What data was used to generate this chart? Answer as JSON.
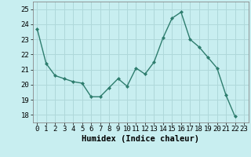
{
  "x": [
    0,
    1,
    2,
    3,
    4,
    5,
    6,
    7,
    8,
    9,
    10,
    11,
    12,
    13,
    14,
    15,
    16,
    17,
    18,
    19,
    20,
    21,
    22,
    23
  ],
  "y": [
    23.7,
    21.4,
    20.6,
    20.4,
    20.2,
    20.1,
    19.2,
    19.2,
    19.8,
    20.4,
    19.9,
    21.1,
    20.7,
    21.5,
    23.1,
    24.4,
    24.8,
    23.0,
    22.5,
    21.8,
    21.1,
    19.3,
    17.9,
    null
  ],
  "xlabel": "Humidex (Indice chaleur)",
  "xlim": [
    -0.5,
    23.5
  ],
  "ylim": [
    17.5,
    25.5
  ],
  "yticks": [
    18,
    19,
    20,
    21,
    22,
    23,
    24,
    25
  ],
  "xticks": [
    0,
    1,
    2,
    3,
    4,
    5,
    6,
    7,
    8,
    9,
    10,
    11,
    12,
    13,
    14,
    15,
    16,
    17,
    18,
    19,
    20,
    21,
    22,
    23
  ],
  "line_color": "#2e7d6e",
  "marker": "D",
  "marker_size": 2.0,
  "bg_color": "#c8eef0",
  "grid_color": "#afd8da",
  "xlabel_fontsize": 7.5,
  "tick_fontsize": 6.5
}
